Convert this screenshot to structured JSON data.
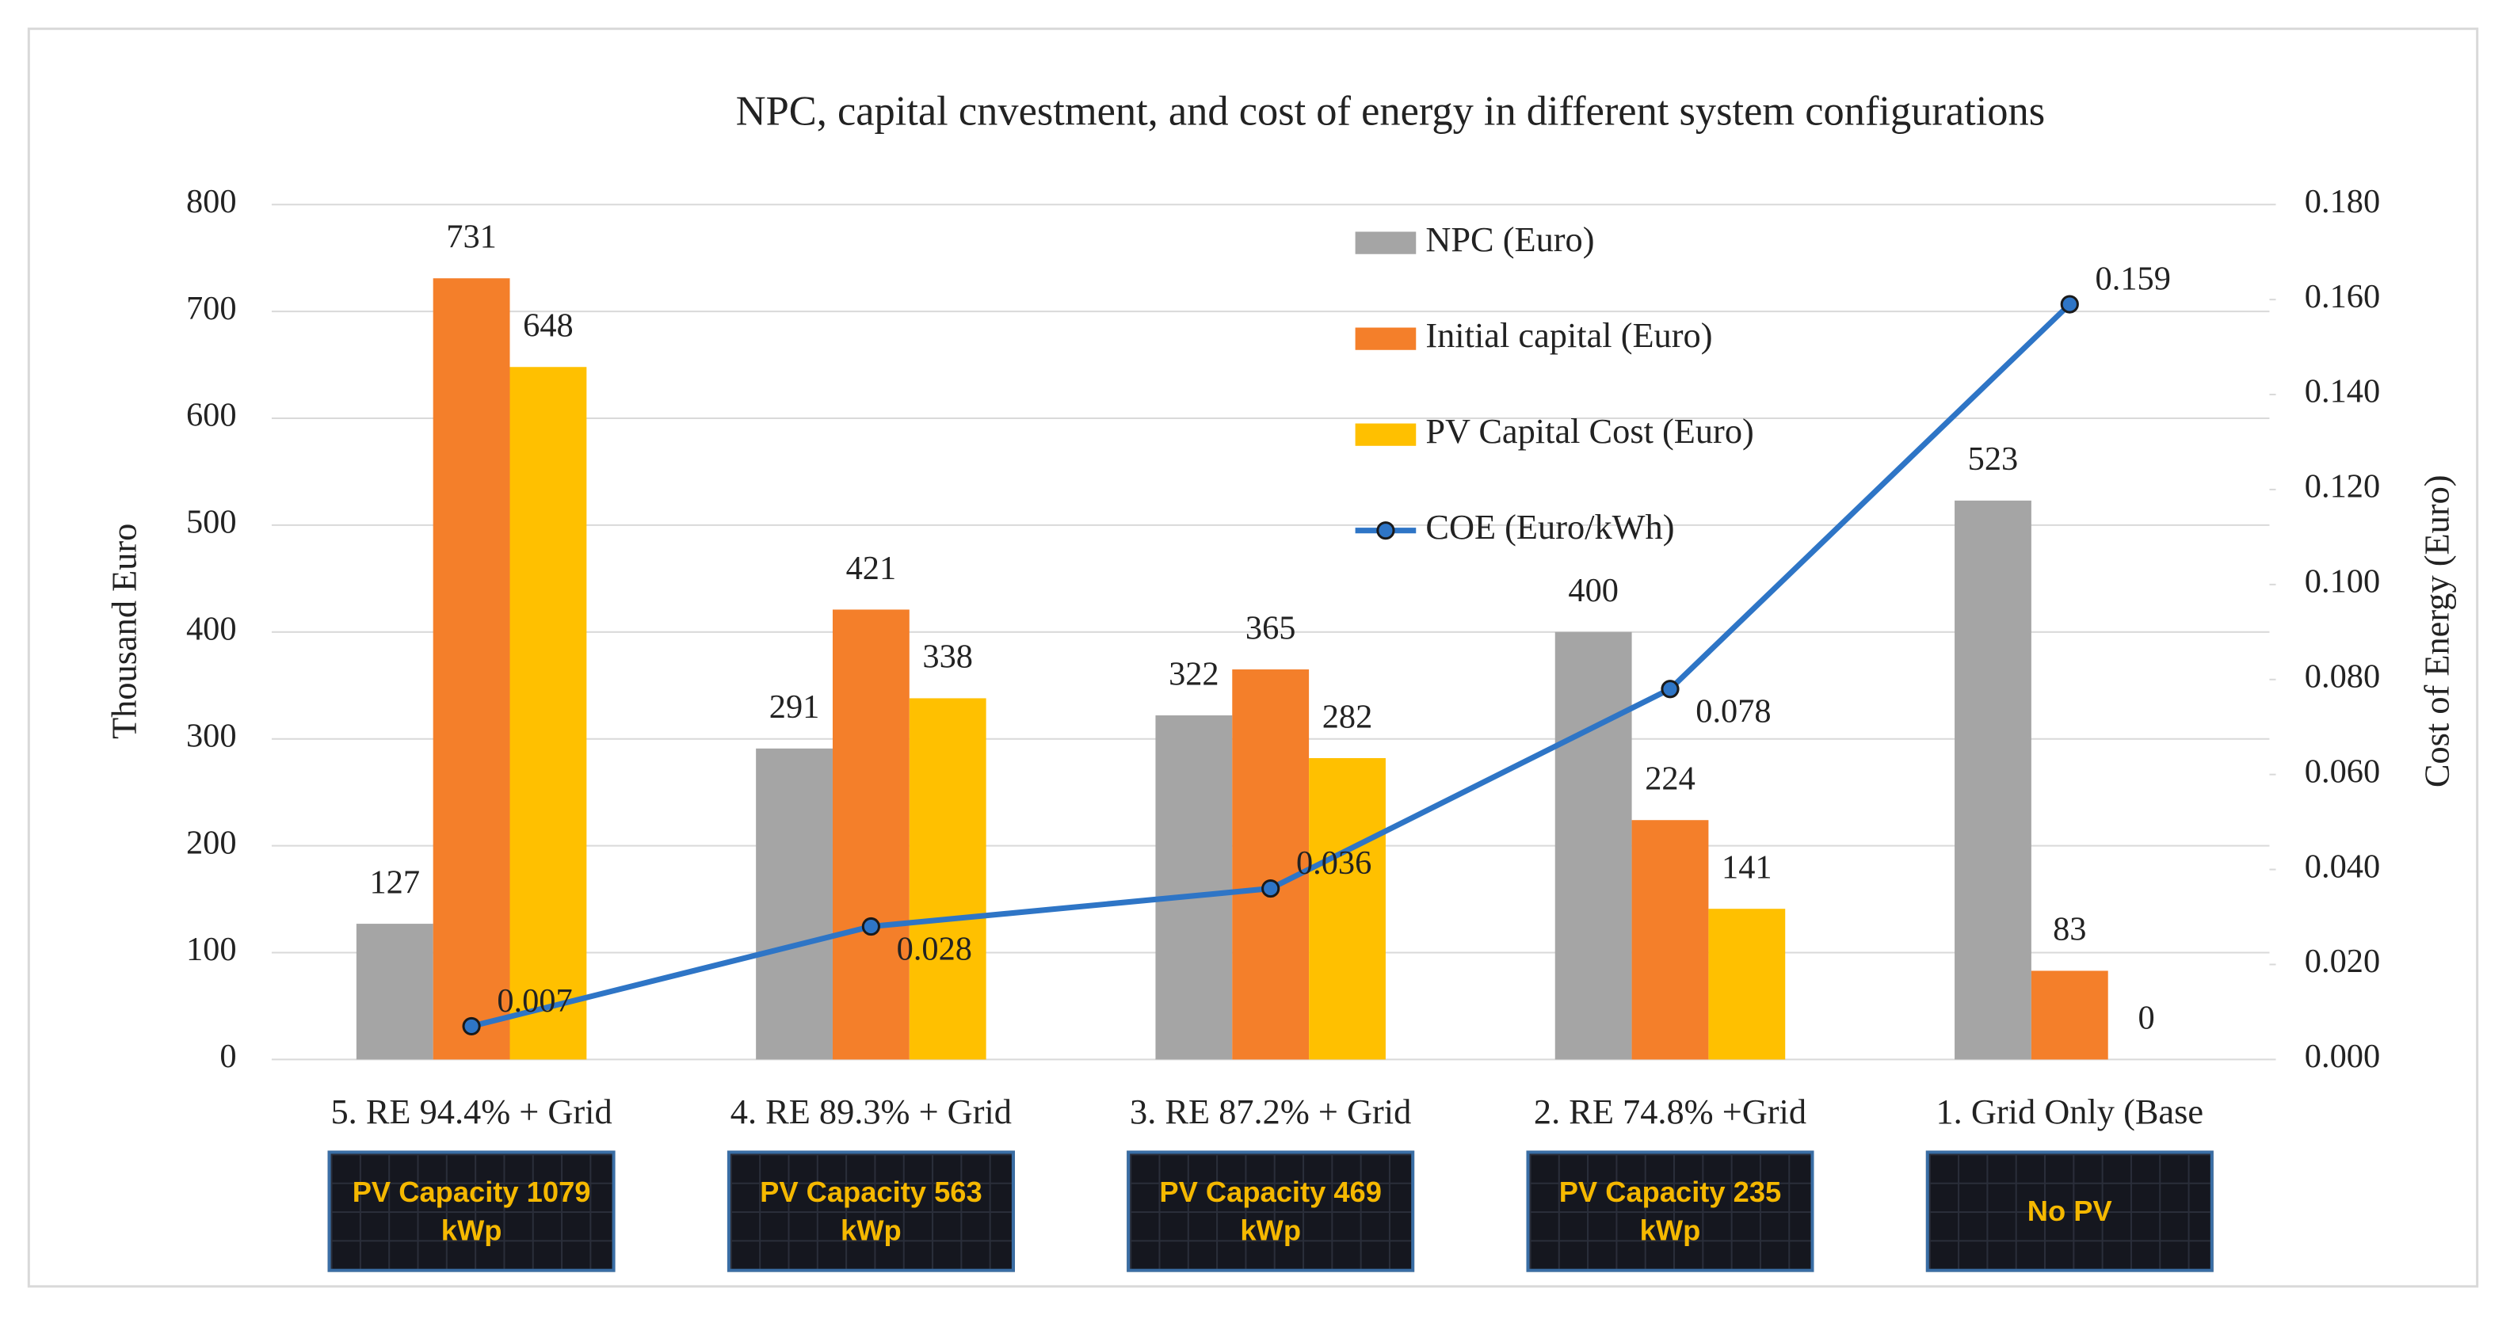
{
  "chart_data": {
    "type": "bar",
    "title": "NPC, capital cnvestment, and cost of energy  in different system configurations",
    "y_label": "Thousand Euro",
    "y2_label": "Cost of Energy (Euro)",
    "categories": [
      "5. RE 94.4% + Grid",
      "4. RE 89.3% + Grid",
      "3. RE 87.2% + Grid",
      "2. RE 74.8% +Grid",
      "1. Grid Only (Base"
    ],
    "series": [
      {
        "name": "NPC (Euro)",
        "color": "#a5a5a5",
        "values": [
          127,
          291,
          322,
          400,
          523
        ]
      },
      {
        "name": "Initial capital (Euro)",
        "color": "#f47f2a",
        "values": [
          731,
          421,
          365,
          224,
          83
        ]
      },
      {
        "name": "PV Capital Cost (Euro)",
        "color": "#ffc000",
        "values": [
          648,
          338,
          282,
          141,
          0
        ]
      },
      {
        "name": "COE (Euro/kWh)",
        "color": "#2e75c6",
        "type": "line",
        "axis": "y2",
        "values": [
          0.007,
          0.028,
          0.036,
          0.078,
          0.159
        ]
      }
    ],
    "ylim": [
      0,
      800
    ],
    "yticks": [
      0,
      100,
      200,
      300,
      400,
      500,
      600,
      700,
      800
    ],
    "y2lim": [
      0,
      0.18
    ],
    "y2ticks": [
      {
        "value": 0,
        "label": "0.000"
      },
      {
        "value": 0.02,
        "label": "0.020"
      },
      {
        "value": 0.04,
        "label": "0.040"
      },
      {
        "value": 0.06,
        "label": "0.060"
      },
      {
        "value": 0.08,
        "label": "0.080"
      },
      {
        "value": 0.1,
        "label": "0.100"
      },
      {
        "value": 0.12,
        "label": "0.120"
      },
      {
        "value": 0.14,
        "label": "0.140"
      },
      {
        "value": 0.16,
        "label": "0.160"
      },
      {
        "value": 0.18,
        "label": "0.180"
      }
    ],
    "grid": true,
    "legend": "top",
    "annotations": [
      "PV Capacity 1079 kWp",
      "PV Capacity 563 kWp",
      "PV Capacity 469 kWp",
      "PV Capacity 235 kWp",
      "No PV"
    ]
  }
}
